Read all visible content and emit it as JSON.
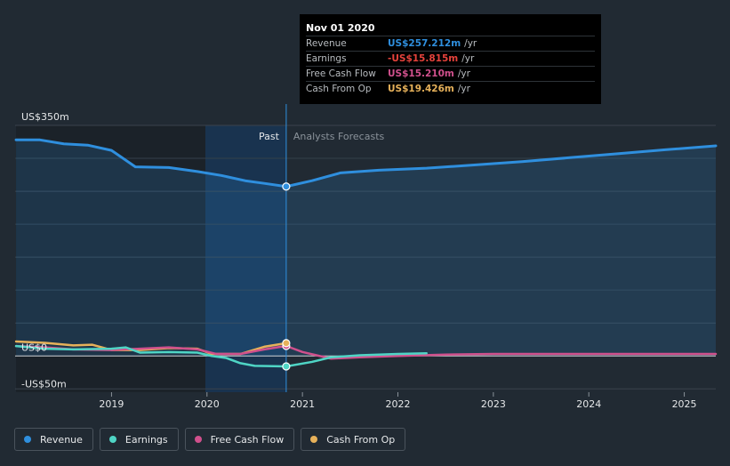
{
  "chart_data": {
    "type": "line",
    "y_unit_labels": [
      "US$350m",
      "US$0",
      "-US$50m"
    ],
    "y_label_values": [
      350,
      0,
      -50
    ],
    "ylim": [
      -55,
      350
    ],
    "xlim": [
      2017.99,
      2025.33
    ],
    "x_ticks": [
      2019,
      2020,
      2021,
      2022,
      2023,
      2024,
      2025
    ],
    "x_tick_labels": [
      "2019",
      "2020",
      "2021",
      "2022",
      "2023",
      "2024",
      "2025"
    ],
    "divider_x": 2020.83,
    "past_label": "Past",
    "forecast_label": "Analysts Forecasts",
    "series": [
      {
        "name": "Revenue",
        "color": "#2f8fde",
        "area": true,
        "x": [
          2018.0,
          2018.25,
          2018.5,
          2018.75,
          2019.0,
          2019.25,
          2019.6,
          2019.9,
          2020.15,
          2020.4,
          2020.6,
          2020.83,
          2021.1,
          2021.4,
          2021.8,
          2022.3,
          2022.8,
          2023.3,
          2023.8,
          2024.3,
          2024.8,
          2025.33
        ],
        "y": [
          328,
          328,
          322,
          320,
          312,
          287,
          286,
          280,
          274,
          266,
          262,
          257.2,
          266,
          278,
          282,
          285,
          290,
          295,
          301,
          307,
          313,
          319
        ]
      },
      {
        "name": "Earnings",
        "color": "#4fd5c5",
        "x": [
          2018.0,
          2018.3,
          2018.6,
          2019.0,
          2019.15,
          2019.3,
          2019.6,
          2019.9,
          2020.05,
          2020.2,
          2020.35,
          2020.5,
          2020.83,
          2021.1,
          2021.3,
          2021.6,
          2022.0,
          2022.3
        ],
        "y": [
          15,
          11,
          10,
          11,
          13,
          5,
          6,
          5,
          0,
          -3,
          -11,
          -15,
          -15.8,
          -9,
          -2,
          1,
          3,
          4
        ]
      },
      {
        "name": "Free Cash Flow",
        "color": "#d0508c",
        "x": [
          2018.0,
          2018.3,
          2018.6,
          2019.0,
          2019.3,
          2019.6,
          2019.9,
          2020.1,
          2020.35,
          2020.6,
          2020.83,
          2021.0,
          2021.3,
          2021.6,
          2022.0,
          2022.5,
          2023.0,
          2024.0,
          2025.33
        ],
        "y": [
          15,
          13,
          10,
          9,
          11,
          13,
          10,
          3,
          3,
          10,
          15.2,
          6,
          -4,
          -2,
          0,
          2,
          3,
          3,
          3
        ]
      },
      {
        "name": "Cash From Op",
        "color": "#e6b15a",
        "x": [
          2018.0,
          2018.3,
          2018.6,
          2018.8,
          2019.0,
          2019.3,
          2019.6,
          2019.9,
          2020.05,
          2020.35,
          2020.6,
          2020.83
        ],
        "y": [
          22,
          20,
          16,
          17,
          9,
          9,
          12,
          11,
          3,
          3,
          14,
          19.4
        ]
      }
    ]
  },
  "tooltip": {
    "date": "Nov 01 2020",
    "rows": [
      {
        "label": "Revenue",
        "value": "US$257.212m",
        "unit": "/yr",
        "color": "#2f8fde"
      },
      {
        "label": "Earnings",
        "value": "-US$15.815m",
        "unit": "/yr",
        "color": "#e5423b"
      },
      {
        "label": "Free Cash Flow",
        "value": "US$15.210m",
        "unit": "/yr",
        "color": "#d0508c"
      },
      {
        "label": "Cash From Op",
        "value": "US$19.426m",
        "unit": "/yr",
        "color": "#e6b15a"
      }
    ]
  },
  "legend": [
    {
      "label": "Revenue",
      "color": "#2f8fde"
    },
    {
      "label": "Earnings",
      "color": "#4fd5c5"
    },
    {
      "label": "Free Cash Flow",
      "color": "#d0508c"
    },
    {
      "label": "Cash From Op",
      "color": "#e6b15a"
    }
  ]
}
